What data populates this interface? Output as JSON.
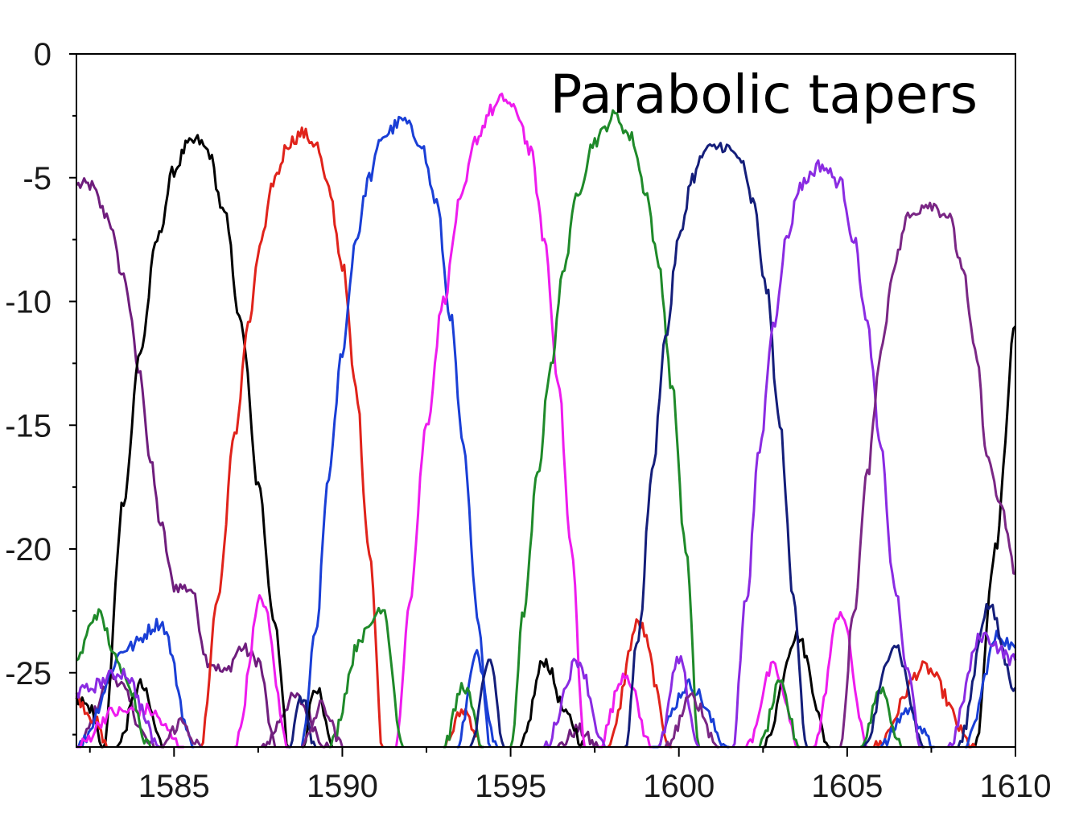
{
  "chart_data": {
    "type": "line",
    "title": "Parabolic tapers",
    "xlabel": "",
    "ylabel": "",
    "xlim": [
      1582.1,
      1610
    ],
    "ylim": [
      -28,
      0
    ],
    "x_ticks": [
      1585,
      1590,
      1595,
      1600,
      1605,
      1610
    ],
    "x_tick_labels": [
      "1585",
      "1590",
      "1595",
      "1600",
      "1605",
      "1610"
    ],
    "y_ticks": [
      0,
      -5,
      -10,
      -15,
      -20,
      -25
    ],
    "y_tick_labels": [
      "0",
      "-5",
      "-10",
      "-15",
      "-20",
      "-25"
    ],
    "grid": false,
    "legend": "none",
    "background": "#ffffff",
    "axis_color": "#000000",
    "series": [
      {
        "color": "#6f1e7d",
        "peak": {
          "x": 1581.0,
          "y": -4.6
        },
        "main_lobe": {
          "x": [
            1582.1,
            1582.5,
            1583.0,
            1583.5,
            1584.0,
            1584.3,
            1584.6,
            1585.0,
            1585.5,
            1586.0,
            1586.5,
            1587.0,
            1587.5,
            1588.0
          ],
          "y": [
            -5.3,
            -5.3,
            -6.5,
            -9.0,
            -13.0,
            -16.5,
            -19.0,
            -21.5,
            -21.6,
            -24.5,
            -25.0,
            -24.0,
            -24.5,
            -28.0
          ]
        },
        "side_lobes": [
          {
            "x": [
              1582.1,
              1583.2,
              1584.4
            ],
            "y": [
              -28.0,
              -25.2,
              -28.0
            ]
          },
          {
            "x": [
              1587.6,
              1588.6,
              1589.6
            ],
            "y": [
              -28.0,
              -26.0,
              -28.0
            ]
          },
          {
            "x": [
              1596.4,
              1597.0,
              1597.6
            ],
            "y": [
              -28.0,
              -27.3,
              -28.0
            ]
          }
        ]
      },
      {
        "color": "#000000",
        "peak": {
          "x": 1585.7,
          "y": -3.5
        },
        "main_lobe": {
          "x": [
            1582.9,
            1583.5,
            1584.0,
            1584.5,
            1585.0,
            1585.4,
            1585.7,
            1586.0,
            1586.5,
            1587.0,
            1587.5,
            1588.0,
            1588.4
          ],
          "y": [
            -28.0,
            -18.0,
            -12.0,
            -7.5,
            -4.7,
            -3.7,
            -3.5,
            -3.9,
            -6.5,
            -11.0,
            -17.5,
            -23.0,
            -28.0
          ]
        },
        "side_lobes": [
          {
            "x": [
              1582.1,
              1582.5,
              1582.9
            ],
            "y": [
              -26.0,
              -26.4,
              -28.0
            ]
          },
          {
            "x": [
              1583.3,
              1584.0,
              1584.7
            ],
            "y": [
              -28.0,
              -25.5,
              -28.0
            ]
          },
          {
            "x": [
              1588.8,
              1589.2,
              1589.7
            ],
            "y": [
              -28.0,
              -25.5,
              -28.0
            ]
          },
          {
            "x": [
              1595.3,
              1596.0,
              1596.7,
              1597.2
            ],
            "y": [
              -28.0,
              -24.5,
              -26.8,
              -28.0
            ]
          },
          {
            "x": [
              1602.5,
              1603.5,
              1604.5
            ],
            "y": [
              -28.0,
              -23.5,
              -28.0
            ]
          },
          {
            "x": [
              1608.8,
              1609.4,
              1610.0
            ],
            "y": [
              -28.0,
              -20.0,
              -11.0
            ]
          }
        ]
      },
      {
        "color": "#e0231b",
        "peak": {
          "x": 1588.8,
          "y": -3.2
        },
        "main_lobe": {
          "x": [
            1585.8,
            1586.3,
            1586.8,
            1587.2,
            1587.6,
            1588.0,
            1588.4,
            1588.8,
            1589.2,
            1589.6,
            1590.0,
            1590.4,
            1590.8,
            1591.2
          ],
          "y": [
            -28.0,
            -22.0,
            -15.5,
            -11.0,
            -7.5,
            -5.0,
            -3.6,
            -3.2,
            -3.6,
            -5.5,
            -8.5,
            -13.5,
            -20.0,
            -28.0
          ]
        },
        "side_lobes": [
          {
            "x": [
              1582.1,
              1582.6,
              1583.0
            ],
            "y": [
              -26.0,
              -26.8,
              -28.0
            ]
          },
          {
            "x": [
              1593.0,
              1593.6,
              1594.2
            ],
            "y": [
              -28.0,
              -26.5,
              -28.0
            ]
          },
          {
            "x": [
              1597.9,
              1598.8,
              1599.8
            ],
            "y": [
              -28.0,
              -23.0,
              -28.0
            ]
          },
          {
            "x": [
              1605.8,
              1607.3,
              1608.8
            ],
            "y": [
              -28.0,
              -24.8,
              -28.0
            ]
          }
        ]
      },
      {
        "color": "#1a3fd6",
        "peak": {
          "x": 1591.8,
          "y": -2.7
        },
        "main_lobe": {
          "x": [
            1588.8,
            1589.2,
            1589.6,
            1590.0,
            1590.4,
            1590.8,
            1591.2,
            1591.8,
            1592.3,
            1592.8,
            1593.2,
            1593.6,
            1594.0,
            1594.4
          ],
          "y": [
            -28.0,
            -23.5,
            -17.0,
            -12.0,
            -7.5,
            -5.0,
            -3.3,
            -2.7,
            -3.5,
            -6.0,
            -10.5,
            -16.0,
            -22.5,
            -28.0
          ]
        },
        "side_lobes": [
          {
            "x": [
              1582.1,
              1583.6,
              1584.6,
              1585.6
            ],
            "y": [
              -28.0,
              -24.0,
              -23.0,
              -28.0
            ]
          },
          {
            "x": [
              1593.4,
              1594.0,
              1594.6
            ],
            "y": [
              -28.0,
              -24.3,
              -28.0
            ]
          },
          {
            "x": [
              1599.2,
              1600.3,
              1601.5
            ],
            "y": [
              -28.0,
              -25.5,
              -28.0
            ]
          },
          {
            "x": [
              1606.0,
              1606.8,
              1607.6
            ],
            "y": [
              -28.0,
              -26.5,
              -28.0
            ]
          },
          {
            "x": [
              1608.5,
              1609.5,
              1610.0
            ],
            "y": [
              -28.0,
              -23.5,
              -24.0
            ]
          }
        ]
      },
      {
        "color": "#ee1cee",
        "peak": {
          "x": 1594.8,
          "y": -1.8
        },
        "main_lobe": {
          "x": [
            1591.6,
            1592.0,
            1592.5,
            1593.0,
            1593.5,
            1594.0,
            1594.4,
            1594.8,
            1595.2,
            1595.6,
            1596.0,
            1596.4,
            1596.8,
            1597.2
          ],
          "y": [
            -28.0,
            -22.0,
            -15.0,
            -10.0,
            -6.0,
            -3.4,
            -2.3,
            -1.8,
            -2.4,
            -4.0,
            -7.5,
            -13.0,
            -20.0,
            -28.0
          ]
        },
        "side_lobes": [
          {
            "x": [
              1582.1,
              1583.2,
              1584.2,
              1585.3
            ],
            "y": [
              -28.0,
              -26.6,
              -26.5,
              -28.0
            ]
          },
          {
            "x": [
              1586.8,
              1587.6,
              1588.4
            ],
            "y": [
              -28.0,
              -22.0,
              -28.0
            ]
          },
          {
            "x": [
              1597.6,
              1598.4,
              1599.2
            ],
            "y": [
              -28.0,
              -25.0,
              -28.0
            ]
          },
          {
            "x": [
              1602.0,
              1602.8,
              1603.6
            ],
            "y": [
              -28.0,
              -24.8,
              -28.0
            ]
          },
          {
            "x": [
              1604.0,
              1604.8,
              1605.6
            ],
            "y": [
              -28.0,
              -22.5,
              -28.0
            ]
          }
        ]
      },
      {
        "color": "#1f8a2a",
        "peak": {
          "x": 1598.1,
          "y": -2.5
        },
        "main_lobe": {
          "x": [
            1595.0,
            1595.4,
            1595.8,
            1596.2,
            1596.6,
            1597.0,
            1597.5,
            1598.1,
            1598.6,
            1599.0,
            1599.4,
            1599.8,
            1600.2,
            1600.6
          ],
          "y": [
            -28.0,
            -22.5,
            -17.0,
            -12.5,
            -8.5,
            -5.5,
            -3.5,
            -2.5,
            -3.4,
            -5.5,
            -8.5,
            -13.5,
            -20.0,
            -28.0
          ]
        },
        "side_lobes": [
          {
            "x": [
              1582.1,
              1582.7,
              1583.5,
              1584.3
            ],
            "y": [
              -24.5,
              -22.6,
              -25.0,
              -28.0
            ]
          },
          {
            "x": [
              1589.6,
              1590.6,
              1591.2,
              1591.8
            ],
            "y": [
              -28.0,
              -23.5,
              -22.3,
              -28.0
            ]
          },
          {
            "x": [
              1593.0,
              1593.6,
              1594.2
            ],
            "y": [
              -28.0,
              -25.5,
              -28.0
            ]
          },
          {
            "x": [
              1602.4,
              1603.0,
              1603.6
            ],
            "y": [
              -28.0,
              -25.5,
              -28.0
            ]
          },
          {
            "x": [
              1605.4,
              1606.0,
              1606.6
            ],
            "y": [
              -28.0,
              -25.6,
              -28.0
            ]
          }
        ]
      },
      {
        "color": "#141e7a",
        "peak": {
          "x": 1601.3,
          "y": -3.7
        },
        "main_lobe": {
          "x": [
            1598.4,
            1598.8,
            1599.2,
            1599.6,
            1600.0,
            1600.4,
            1600.8,
            1601.3,
            1601.8,
            1602.2,
            1602.6,
            1603.0,
            1603.4,
            1603.8
          ],
          "y": [
            -28.0,
            -23.5,
            -17.0,
            -11.5,
            -7.5,
            -5.0,
            -3.9,
            -3.7,
            -4.2,
            -6.0,
            -9.5,
            -15.0,
            -22.0,
            -28.0
          ]
        },
        "side_lobes": [
          {
            "x": [
              1588.4,
              1588.8,
              1589.2
            ],
            "y": [
              -28.0,
              -26.0,
              -28.0
            ]
          },
          {
            "x": [
              1593.8,
              1594.4,
              1594.8
            ],
            "y": [
              -28.0,
              -24.5,
              -28.0
            ]
          },
          {
            "x": [
              1605.5,
              1606.4,
              1607.3
            ],
            "y": [
              -28.0,
              -23.8,
              -28.0
            ]
          },
          {
            "x": [
              1608.3,
              1609.2,
              1610.0
            ],
            "y": [
              -28.0,
              -22.3,
              -25.6
            ]
          }
        ]
      },
      {
        "color": "#8a2be2",
        "peak": {
          "x": 1604.2,
          "y": -4.5
        },
        "main_lobe": {
          "x": [
            1601.6,
            1602.0,
            1602.4,
            1602.8,
            1603.2,
            1603.6,
            1604.2,
            1604.8,
            1605.2,
            1605.6,
            1606.0,
            1606.4,
            1606.8,
            1607.2
          ],
          "y": [
            -28.0,
            -22.0,
            -16.0,
            -11.0,
            -7.5,
            -5.3,
            -4.5,
            -5.2,
            -7.5,
            -11.0,
            -16.0,
            -21.5,
            -25.0,
            -28.0
          ]
        },
        "side_lobes": [
          {
            "x": [
              1582.1,
              1583.5,
              1584.6
            ],
            "y": [
              -25.8,
              -25.0,
              -28.0
            ]
          },
          {
            "x": [
              1596.0,
              1597.0,
              1597.8
            ],
            "y": [
              -28.0,
              -24.5,
              -28.0
            ]
          },
          {
            "x": [
              1599.4,
              1600.0,
              1600.6
            ],
            "y": [
              -28.0,
              -24.5,
              -28.0
            ]
          },
          {
            "x": [
              1608.0,
              1609.0,
              1610.0
            ],
            "y": [
              -28.0,
              -23.5,
              -24.5
            ]
          }
        ]
      },
      {
        "color": "#7a2785",
        "peak": {
          "x": 1607.4,
          "y": -6.0
        },
        "main_lobe": {
          "x": [
            1604.8,
            1605.2,
            1605.6,
            1606.0,
            1606.4,
            1606.8,
            1607.4,
            1608.0,
            1608.4,
            1608.8,
            1609.2,
            1609.6,
            1610.0
          ],
          "y": [
            -28.0,
            -22.5,
            -17.0,
            -12.0,
            -8.5,
            -6.6,
            -6.0,
            -6.5,
            -8.5,
            -12.0,
            -16.5,
            -18.5,
            -21.0
          ]
        },
        "side_lobes": [
          {
            "x": [
              1584.6,
              1585.2,
              1585.8
            ],
            "y": [
              -28.0,
              -27.0,
              -28.0
            ]
          },
          {
            "x": [
              1588.8,
              1589.4,
              1590.0
            ],
            "y": [
              -28.0,
              -26.3,
              -28.0
            ]
          },
          {
            "x": [
              1599.6,
              1600.4,
              1601.2
            ],
            "y": [
              -28.0,
              -26.0,
              -28.0
            ]
          }
        ]
      }
    ]
  }
}
